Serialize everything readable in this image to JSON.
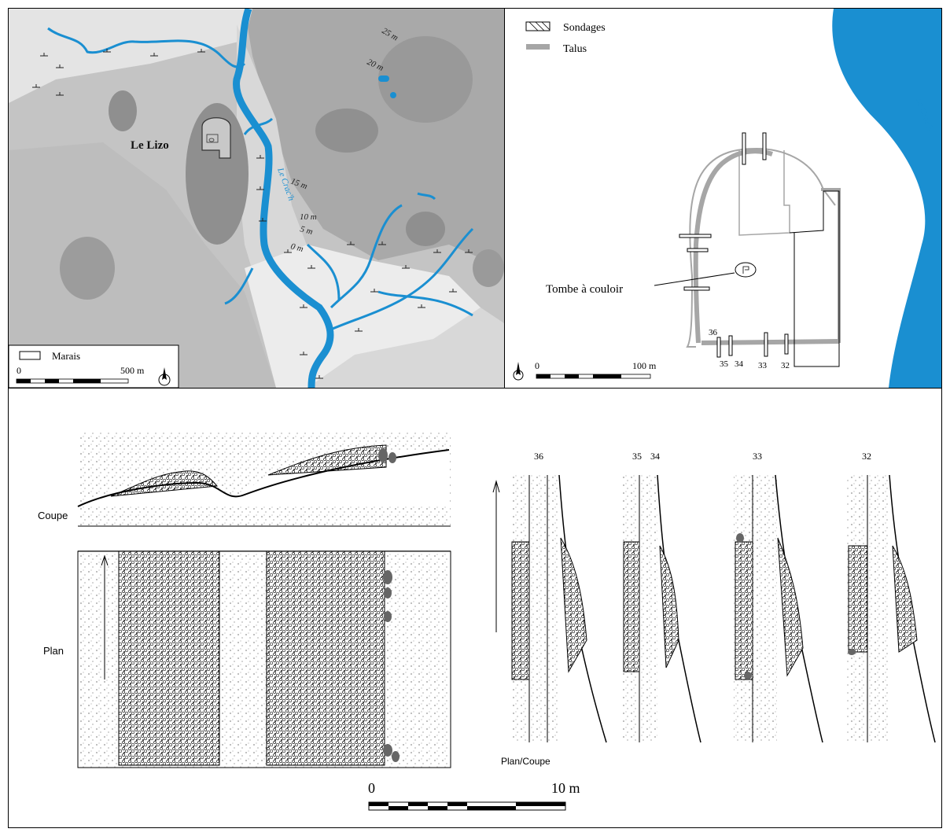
{
  "site_label": "Le Lizo",
  "river_label": "Le Crac'h",
  "contours": [
    "25 m",
    "20 m",
    "15 m",
    "10 m",
    "5 m",
    "0 m"
  ],
  "legend_left": {
    "marsh": "Marais"
  },
  "scale_left": {
    "start": "0",
    "end": "500 m"
  },
  "legend_right": {
    "trenches": "Sondages",
    "bank": "Talus"
  },
  "tomb_label": "Tombe à couloir",
  "trench_numbers": [
    "36",
    "35",
    "34",
    "33",
    "32"
  ],
  "scale_right": {
    "start": "0",
    "end": "100 m"
  },
  "section_labels": {
    "section": "Coupe",
    "plan": "Plan",
    "plan_section": "Plan/Coupe"
  },
  "scale_bottom": {
    "start": "0",
    "end": "10 m"
  },
  "colors": {
    "river": "#1a8fd1",
    "bank": "#a6a6a6",
    "terrain_light": "#d8d8d8",
    "terrain_dark": "#8c8c8c"
  }
}
